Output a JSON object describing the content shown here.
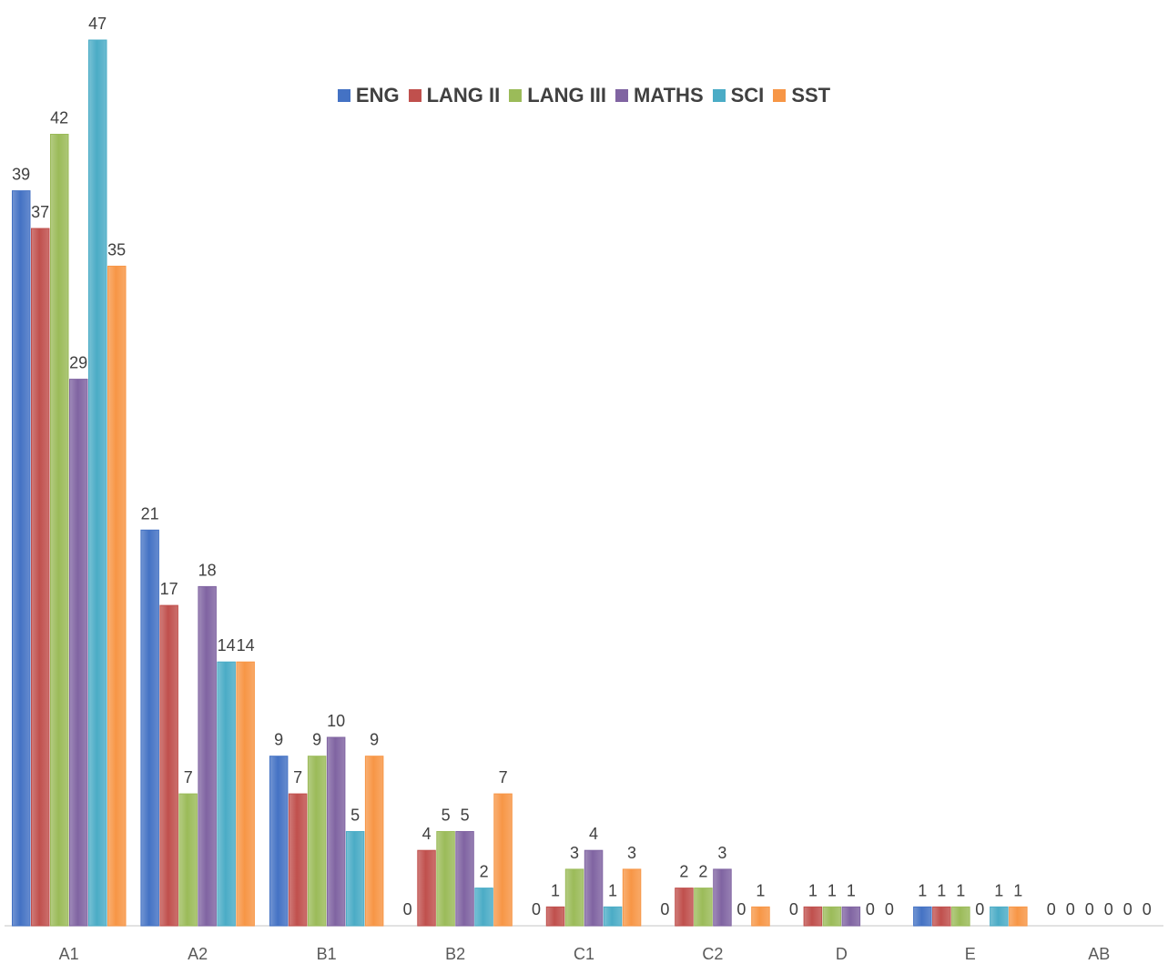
{
  "chart_data": {
    "type": "bar",
    "title": "",
    "xlabel": "",
    "ylabel": "",
    "ylim": [
      0,
      47
    ],
    "grid": false,
    "legend_position": "top-center",
    "categories": [
      "A1",
      "A2",
      "B1",
      "B2",
      "C1",
      "C2",
      "D",
      "E",
      "AB"
    ],
    "series": [
      {
        "name": "ENG",
        "color": "#4472C4",
        "values": [
          39,
          21,
          9,
          0,
          0,
          0,
          0,
          1,
          0
        ]
      },
      {
        "name": "LANG II",
        "color": "#C0504D",
        "values": [
          37,
          17,
          7,
          4,
          1,
          2,
          1,
          1,
          0
        ]
      },
      {
        "name": "LANG III",
        "color": "#9BBB59",
        "values": [
          42,
          7,
          9,
          5,
          3,
          2,
          1,
          1,
          0
        ]
      },
      {
        "name": "MATHS",
        "color": "#8064A2",
        "values": [
          29,
          18,
          10,
          5,
          4,
          3,
          1,
          0,
          0
        ]
      },
      {
        "name": "SCI",
        "color": "#4BACC6",
        "values": [
          47,
          14,
          5,
          2,
          1,
          0,
          0,
          1,
          0
        ]
      },
      {
        "name": "SST",
        "color": "#F79646",
        "values": [
          35,
          14,
          9,
          7,
          3,
          1,
          0,
          1,
          0
        ]
      }
    ]
  }
}
